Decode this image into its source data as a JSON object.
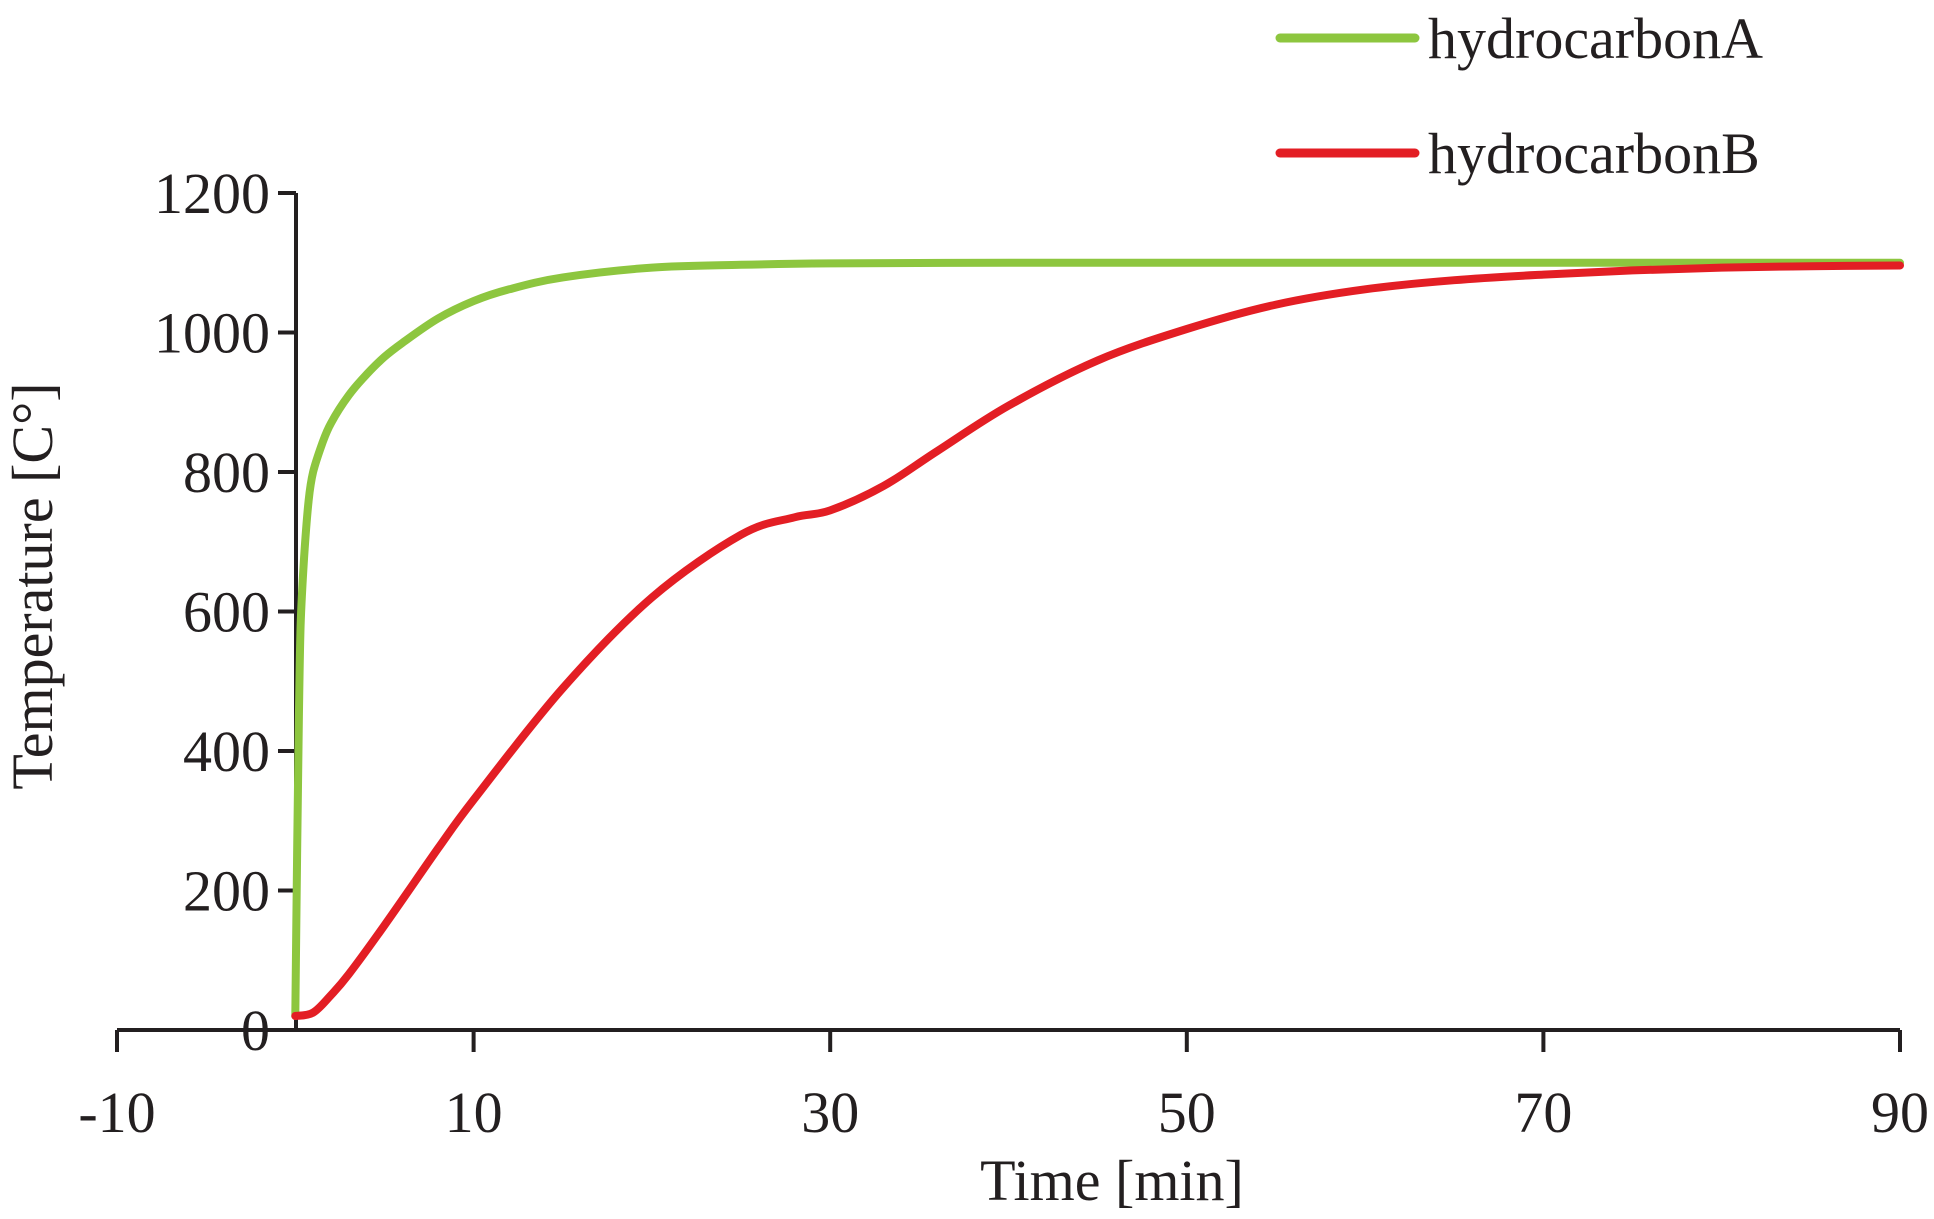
{
  "chart_data": {
    "type": "line",
    "title": "",
    "xlabel": "Time [min]",
    "ylabel": "Temperature [C°]",
    "xlim": [
      -10,
      90
    ],
    "ylim": [
      0,
      1200
    ],
    "x_ticks": [
      -10,
      10,
      30,
      50,
      70,
      90
    ],
    "y_ticks": [
      0,
      200,
      400,
      600,
      800,
      1000,
      1200
    ],
    "grid": false,
    "legend_position": "top-right",
    "series": [
      {
        "name": "hydrocarbonA",
        "color": "#8dc63f",
        "x": [
          0,
          0.1,
          0.2,
          0.3,
          0.5,
          0.75,
          1,
          1.5,
          2,
          3,
          4,
          5,
          6,
          8,
          10,
          12,
          15,
          20,
          25,
          30,
          40,
          50,
          60,
          70,
          80,
          90
        ],
        "y": [
          20,
          250,
          450,
          580,
          680,
          760,
          800,
          840,
          870,
          910,
          940,
          965,
          985,
          1020,
          1045,
          1062,
          1079,
          1093,
          1097,
          1099,
          1100,
          1100,
          1100,
          1100,
          1100,
          1100
        ]
      },
      {
        "name": "hydrocarbonB",
        "color": "#e31e24",
        "x": [
          0,
          1,
          2,
          3,
          5,
          8,
          10,
          15,
          20,
          25,
          28,
          30,
          33,
          36,
          40,
          45,
          50,
          55,
          60,
          65,
          70,
          75,
          80,
          85,
          90
        ],
        "y": [
          20,
          25,
          50,
          80,
          150,
          260,
          330,
          490,
          620,
          710,
          735,
          745,
          780,
          830,
          895,
          960,
          1005,
          1040,
          1062,
          1075,
          1083,
          1089,
          1093,
          1095,
          1096
        ]
      }
    ]
  }
}
